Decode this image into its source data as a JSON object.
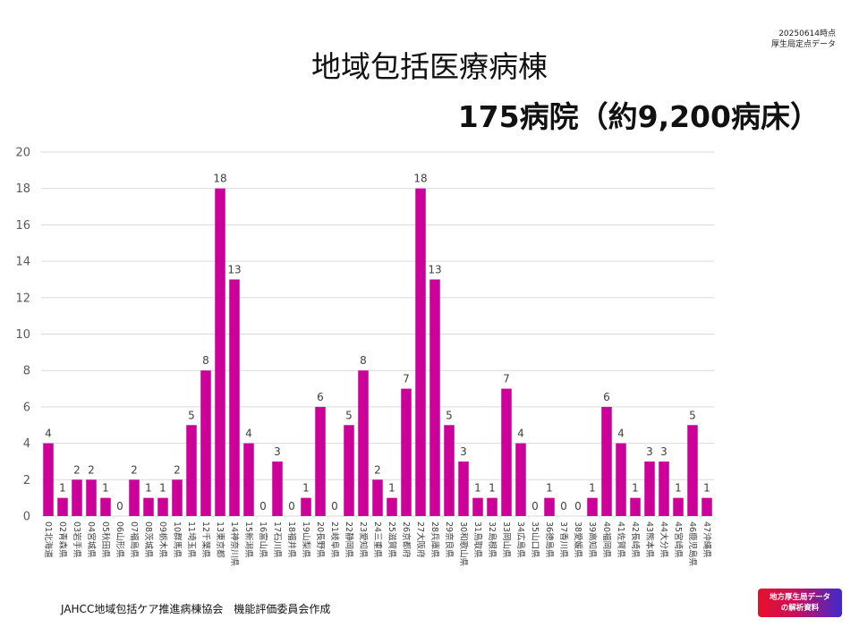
{
  "stamp": {
    "line1": "20250614時点",
    "line2": "厚生局定点データ"
  },
  "title": "地域包括医療病棟",
  "subtitle": "175病院（約9,200病床）",
  "footer": "JAHCC地域包括ケア推進病棟協会　機能評価委員会作成",
  "badge": {
    "line1": "地方厚生局データ",
    "line2": "の解析資料"
  },
  "colors": {
    "bar": "#cc0099"
  },
  "chart_data": {
    "type": "bar",
    "categories": [
      "01北海道",
      "02青森県",
      "03岩手県",
      "04宮城県",
      "05秋田県",
      "06山形県",
      "07福島県",
      "08茨城県",
      "09栃木県",
      "10群馬県",
      "11埼玉県",
      "12千葉県",
      "13東京都",
      "14神奈川県",
      "15新潟県",
      "16富山県",
      "17石川県",
      "18福井県",
      "19山梨県",
      "20長野県",
      "21岐阜県",
      "22静岡県",
      "23愛知県",
      "24三重県",
      "25滋賀県",
      "26京都府",
      "27大阪府",
      "28兵庫県",
      "29奈良県",
      "30和歌山県",
      "31鳥取県",
      "32島根県",
      "33岡山県",
      "34広島県",
      "35山口県",
      "36徳島県",
      "37香川県",
      "38愛媛県",
      "39高知県",
      "40福岡県",
      "41佐賀県",
      "42長崎県",
      "43熊本県",
      "44大分県",
      "45宮崎県",
      "46鹿児島県",
      "47沖縄県"
    ],
    "values": [
      4,
      1,
      2,
      2,
      1,
      0,
      2,
      1,
      1,
      2,
      5,
      8,
      18,
      13,
      4,
      0,
      3,
      0,
      1,
      6,
      0,
      5,
      8,
      2,
      1,
      7,
      18,
      13,
      5,
      3,
      1,
      1,
      7,
      4,
      0,
      1,
      0,
      0,
      1,
      6,
      4,
      1,
      3,
      3,
      1,
      5,
      1
    ],
    "ylim": [
      0,
      20
    ],
    "yticks": [
      0,
      2,
      4,
      6,
      8,
      10,
      12,
      14,
      16,
      18,
      20
    ],
    "grid": true,
    "data_labels": true
  }
}
